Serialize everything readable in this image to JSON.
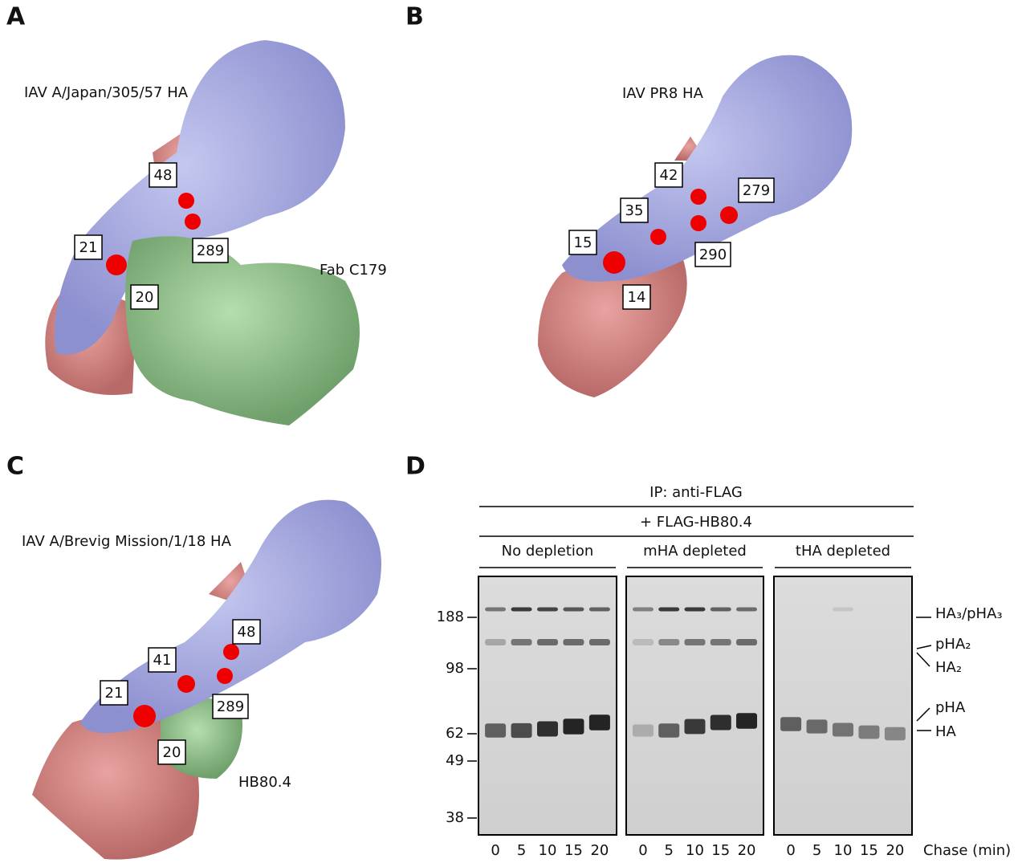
{
  "panels": [
    {
      "letter": "A",
      "title": "IAV A/Japan/305/57 HA",
      "partner": "Fab C179",
      "residues": [
        48,
        21,
        289,
        20
      ]
    },
    {
      "letter": "B",
      "title": "IAV PR8 HA",
      "residues": [
        42,
        279,
        35,
        15,
        290,
        14
      ]
    },
    {
      "letter": "C",
      "title": "IAV A/Brevig Mission/1/18 HA",
      "partner": "HB80.4",
      "residues": [
        48,
        41,
        21,
        289,
        20
      ]
    }
  ],
  "gel": {
    "letter": "D",
    "ip": "IP: anti-FLAG",
    "addition": "+ FLAG-HB80.4",
    "conditions": [
      "No depletion",
      "mHA depleted",
      "tHA depleted"
    ],
    "markers": [
      188,
      98,
      62,
      49,
      38
    ],
    "lanes": [
      0,
      5,
      10,
      15,
      20
    ],
    "lane_axis": "Chase (min)",
    "bands": [
      "HA₃/pHA₃",
      "pHA₂",
      "HA₂",
      "pHA",
      "HA"
    ]
  }
}
